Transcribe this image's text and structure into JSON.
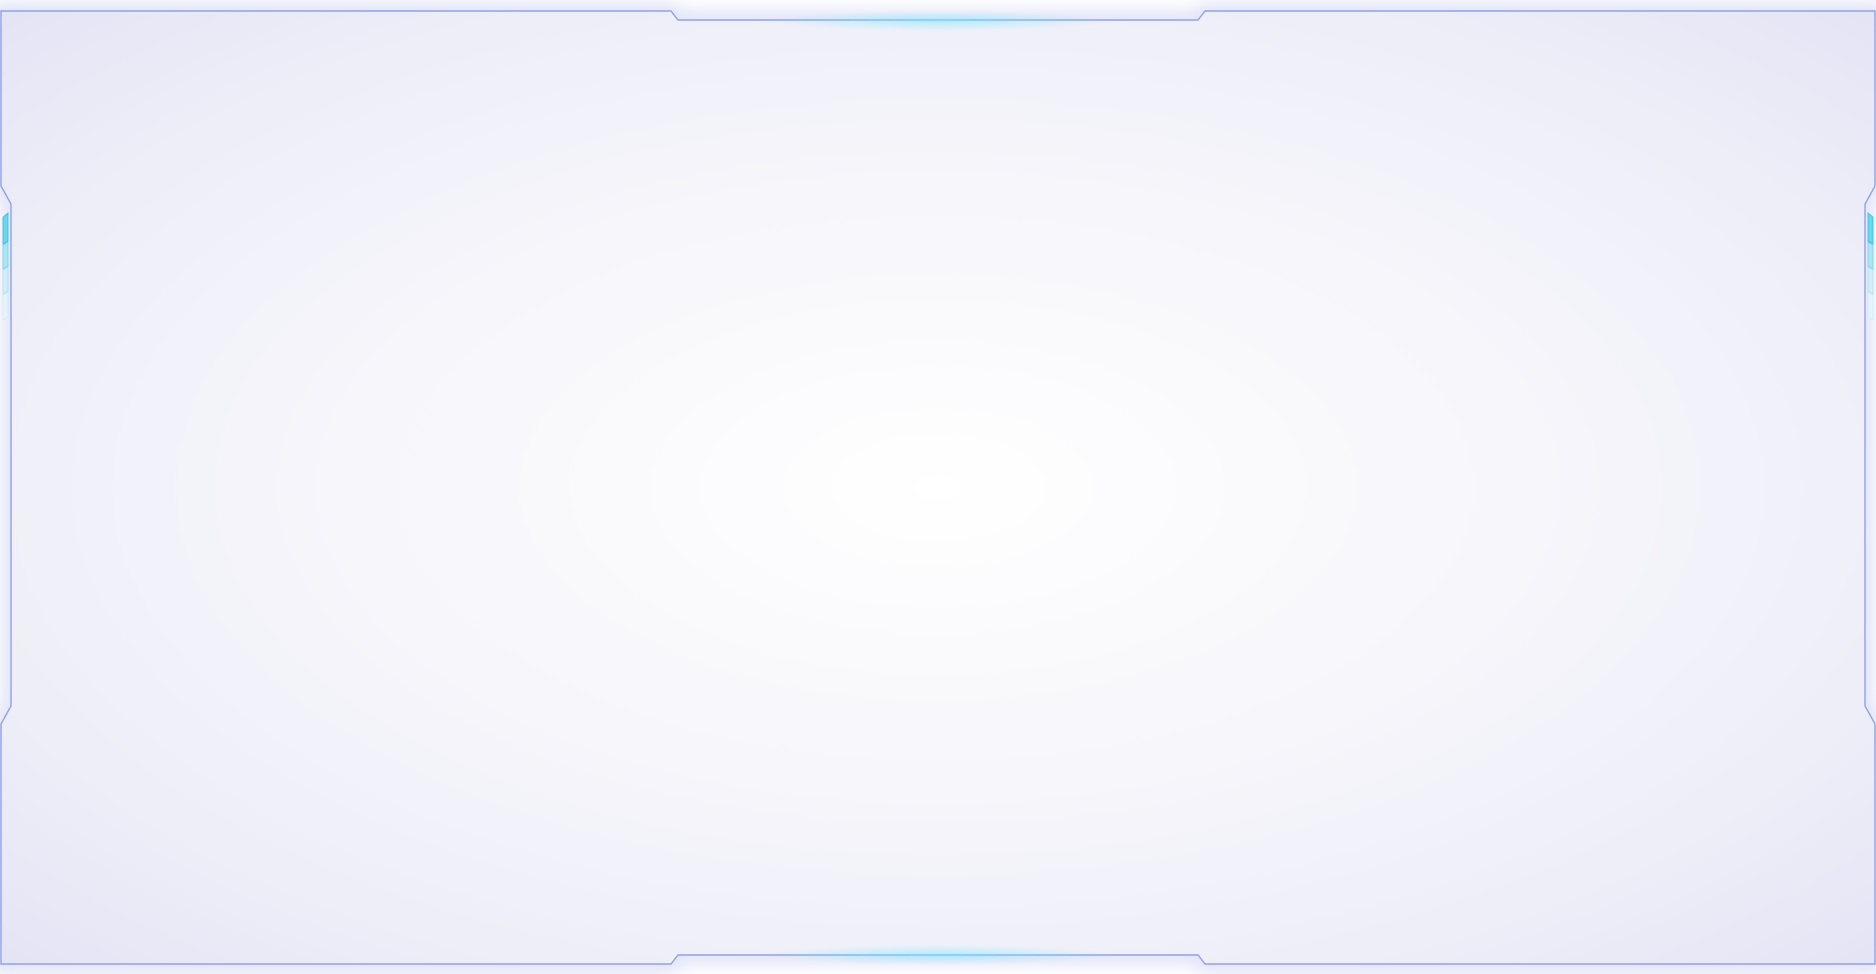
{
  "panel": {
    "border_color": "#8fa2e8",
    "inner_glow_color": "#e6e6f6",
    "center_color": "#ffffff",
    "accent_color": "#1fd3f0"
  },
  "decorations": {
    "side_indicator_icon": "segmented-indicator-icon",
    "top_glow_icon": "glow-line-icon",
    "bottom_glow_icon": "glow-line-icon"
  }
}
